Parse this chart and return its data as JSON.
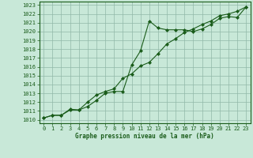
{
  "line1_x": [
    0,
    1,
    2,
    3,
    4,
    5,
    6,
    7,
    8,
    9,
    10,
    11,
    12,
    13,
    14,
    15,
    16,
    17,
    18,
    19,
    20,
    21,
    22,
    23
  ],
  "line1_y": [
    1010.2,
    1010.5,
    1010.5,
    1011.1,
    1011.1,
    1011.5,
    1012.2,
    1013.0,
    1013.2,
    1013.2,
    1016.2,
    1017.8,
    1021.2,
    1020.4,
    1020.2,
    1020.2,
    1020.2,
    1020.0,
    1020.3,
    1020.8,
    1021.5,
    1021.7,
    1021.6,
    1022.8
  ],
  "line2_x": [
    0,
    1,
    2,
    3,
    4,
    5,
    6,
    7,
    8,
    9,
    10,
    11,
    12,
    13,
    14,
    15,
    16,
    17,
    18,
    19,
    20,
    21,
    22,
    23
  ],
  "line2_y": [
    1010.2,
    1010.5,
    1010.5,
    1011.2,
    1011.1,
    1012.0,
    1012.8,
    1013.2,
    1013.5,
    1014.7,
    1015.2,
    1016.1,
    1016.5,
    1017.5,
    1018.6,
    1019.2,
    1019.9,
    1020.3,
    1020.8,
    1021.2,
    1021.8,
    1022.0,
    1022.3,
    1022.8
  ],
  "line_color": "#1a5c1a",
  "bg_color": "#c8e8d8",
  "grid_color": "#90b8a8",
  "ylabel_values": [
    1010,
    1011,
    1012,
    1013,
    1014,
    1015,
    1016,
    1017,
    1018,
    1019,
    1020,
    1021,
    1022,
    1023
  ],
  "xlabel_values": [
    0,
    1,
    2,
    3,
    4,
    5,
    6,
    7,
    8,
    9,
    10,
    11,
    12,
    13,
    14,
    15,
    16,
    17,
    18,
    19,
    20,
    21,
    22,
    23
  ],
  "xlabel": "Graphe pression niveau de la mer (hPa)",
  "ylim": [
    1009.6,
    1023.4
  ],
  "xlim": [
    -0.5,
    23.5
  ],
  "marker": "D",
  "markersize": 2.0,
  "linewidth": 0.8,
  "tick_fontsize": 5.0,
  "label_fontsize": 5.5
}
